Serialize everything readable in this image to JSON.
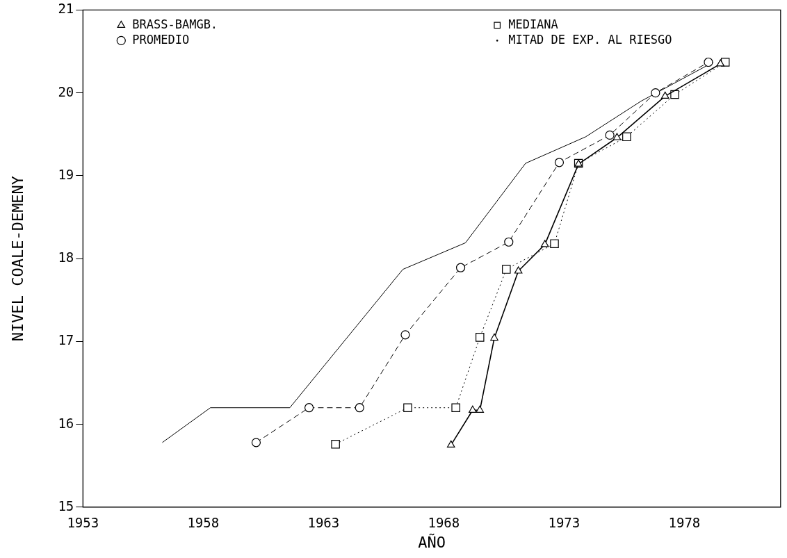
{
  "chart_data": {
    "type": "line",
    "xlabel": "AÑO",
    "ylabel": "NIVEL COALE-DEMENY",
    "xlim": [
      1953,
      1982
    ],
    "xticks": [
      1953,
      1958,
      1963,
      1968,
      1973,
      1978
    ],
    "ylim": [
      15,
      21
    ],
    "yticks": [
      15,
      16,
      17,
      18,
      19,
      20,
      21
    ],
    "grid": false,
    "legend": "top left",
    "series": [
      {
        "name": "BRASS-BAMGB.",
        "color": "#000000",
        "marker": "triangle",
        "line_style": "solid",
        "x": [
          1968.3,
          1969.2,
          1969.5,
          1970.1,
          1971.1,
          1972.2,
          1973.6,
          1975.2,
          1977.2,
          1979.5
        ],
        "values": [
          15.75,
          16.17,
          16.17,
          17.04,
          17.85,
          18.17,
          19.14,
          19.46,
          19.96,
          20.35
        ]
      },
      {
        "name": "PROMEDIO",
        "color": "#000000",
        "marker": "circle",
        "line_style": "dashed",
        "x": [
          1960.2,
          1962.4,
          1964.5,
          1966.4,
          1968.7,
          1970.7,
          1972.8,
          1974.9,
          1976.8,
          1979.0
        ],
        "values": [
          15.78,
          16.2,
          16.2,
          17.08,
          17.89,
          18.2,
          19.16,
          19.49,
          20.0,
          20.37
        ]
      },
      {
        "name": "MEDIANA",
        "color": "#000000",
        "marker": "square",
        "line_style": "dotted",
        "x": [
          1963.5,
          1966.5,
          1968.5,
          1969.5,
          1970.6,
          1972.6,
          1973.6,
          1975.6,
          1977.6,
          1979.7
        ],
        "values": [
          15.76,
          16.2,
          16.2,
          17.05,
          17.87,
          18.18,
          19.15,
          19.47,
          19.98,
          20.37
        ]
      },
      {
        "name": "MITAD DE EXP. AL RIESGO",
        "color": "#000000",
        "marker": "none",
        "line_style": "solid",
        "x": [
          1956.3,
          1958.3,
          1961.6,
          1966.3,
          1968.9,
          1971.4,
          1973.9,
          1976.2,
          1979.2
        ],
        "values": [
          15.78,
          16.2,
          16.2,
          17.87,
          18.19,
          19.15,
          19.47,
          19.9,
          20.37
        ]
      }
    ]
  }
}
